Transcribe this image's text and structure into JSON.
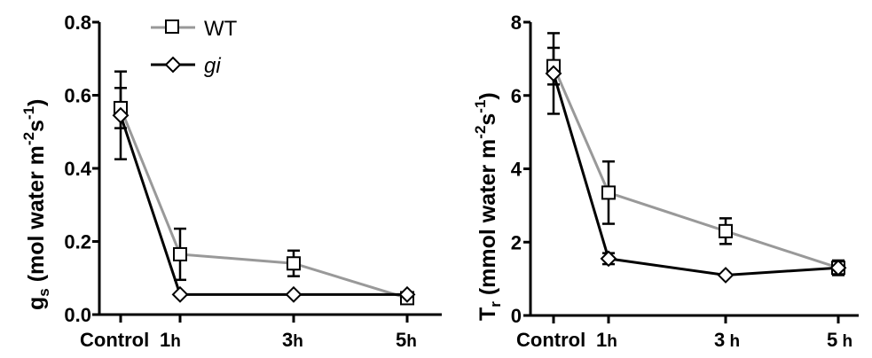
{
  "chart_data": [
    {
      "type": "line",
      "categories": [
        "Control",
        "1h",
        "3h",
        "5h"
      ],
      "ylabel_main": "g",
      "ylabel_sub": "s",
      "ylabel_rest": " (mol water m",
      "ylabel_exp1": "-2",
      "ylabel_mid": "s",
      "ylabel_exp2": "-1",
      "ylabel_close": ")",
      "ylim": [
        0,
        0.8
      ],
      "yticks": [
        "0.0",
        "0.2",
        "0.4",
        "0.6",
        "0.8"
      ],
      "yticks_values": [
        0,
        0.2,
        0.4,
        0.6,
        0.8
      ],
      "grid": false,
      "legend": "top-left",
      "series": [
        {
          "name": "WT",
          "color": "#999999",
          "marker": "square",
          "values": [
            0.565,
            0.165,
            0.14,
            0.045
          ],
          "errors": [
            0.055,
            0.07,
            0.035,
            0.015
          ]
        },
        {
          "name": "gi",
          "color": "#000000",
          "marker": "diamond",
          "values": [
            0.545,
            0.055,
            0.055,
            0.055
          ],
          "errors": [
            0.12,
            0.0,
            0.0,
            0.0
          ]
        }
      ]
    },
    {
      "type": "line",
      "categories": [
        "Control",
        "1h",
        "3 h",
        "5 h"
      ],
      "ylabel_main": "T",
      "ylabel_sub": "r",
      "ylabel_rest": " (mmol water m",
      "ylabel_exp1": "-2",
      "ylabel_mid": "s",
      "ylabel_exp2": "-1",
      "ylabel_close": ")",
      "ylim": [
        0,
        8
      ],
      "yticks": [
        "0",
        "2",
        "4",
        "6",
        "8"
      ],
      "yticks_values": [
        0,
        2,
        4,
        6,
        8
      ],
      "grid": false,
      "legend": "none",
      "series": [
        {
          "name": "WT",
          "color": "#999999",
          "marker": "square",
          "values": [
            6.8,
            3.35,
            2.3,
            1.3
          ],
          "errors": [
            0.5,
            0.85,
            0.35,
            0.2
          ]
        },
        {
          "name": "gi",
          "color": "#000000",
          "marker": "diamond",
          "values": [
            6.6,
            1.55,
            1.1,
            1.3
          ],
          "errors": [
            1.1,
            0.15,
            0.0,
            0.1
          ]
        }
      ]
    }
  ]
}
